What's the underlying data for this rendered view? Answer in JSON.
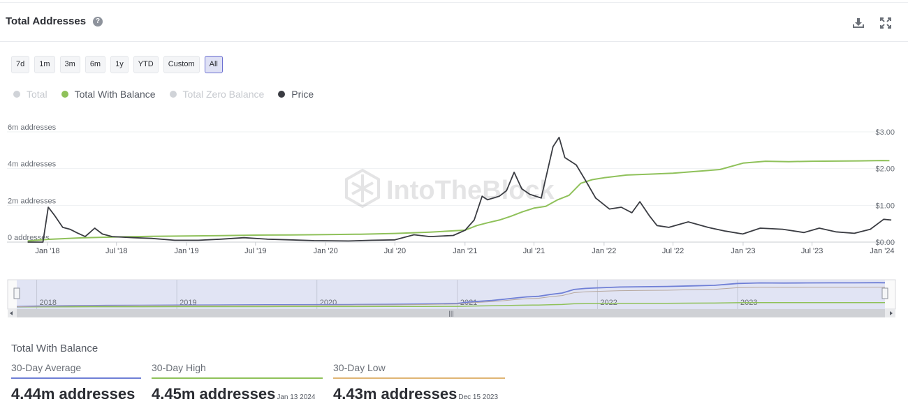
{
  "header": {
    "title": "Total Addresses",
    "help_icon": "question-circle-icon",
    "download_icon": "download-icon",
    "fullscreen_icon": "expand-icon"
  },
  "ranges": [
    "7d",
    "1m",
    "3m",
    "6m",
    "1y",
    "YTD",
    "Custom",
    "All"
  ],
  "active_range": "All",
  "legend": [
    {
      "label": "Total",
      "color": "#d0d3d8",
      "enabled": false
    },
    {
      "label": "Total With Balance",
      "color": "#8fc15a",
      "enabled": true
    },
    {
      "label": "Total Zero Balance",
      "color": "#d0d3d8",
      "enabled": false
    },
    {
      "label": "Price",
      "color": "#3a3c42",
      "enabled": true
    }
  ],
  "chart_data": {
    "type": "line",
    "watermark": "IntoTheBlock",
    "x_ticks": [
      "Jan '18",
      "Jul '18",
      "Jan '19",
      "Jul '19",
      "Jan '20",
      "Jul '20",
      "Jan '21",
      "Jul '21",
      "Jan '22",
      "Jul '22",
      "Jan '23",
      "Jul '23",
      "Jan '24"
    ],
    "y_left_ticks": [
      "0 addresses",
      "2m addresses",
      "4m addresses",
      "6m addresses"
    ],
    "y_left_range": [
      0,
      6000000
    ],
    "y_right_ticks": [
      "$0.00",
      "$1.00",
      "$2.00",
      "$3.00"
    ],
    "y_right_range": [
      0,
      3
    ],
    "grid": true,
    "series": [
      {
        "name": "Total With Balance",
        "axis": "left",
        "color": "#8fc15a",
        "points": [
          [
            "2017-11-10",
            60000
          ],
          [
            "2018-01-01",
            150000
          ],
          [
            "2018-04-01",
            230000
          ],
          [
            "2018-07-01",
            280000
          ],
          [
            "2018-10-01",
            310000
          ],
          [
            "2019-01-01",
            330000
          ],
          [
            "2019-04-01",
            350000
          ],
          [
            "2019-07-01",
            380000
          ],
          [
            "2019-10-01",
            390000
          ],
          [
            "2020-01-01",
            410000
          ],
          [
            "2020-04-01",
            430000
          ],
          [
            "2020-07-01",
            470000
          ],
          [
            "2020-10-01",
            540000
          ],
          [
            "2021-01-01",
            650000
          ],
          [
            "2021-02-01",
            900000
          ],
          [
            "2021-03-01",
            1050000
          ],
          [
            "2021-04-01",
            1200000
          ],
          [
            "2021-05-01",
            1400000
          ],
          [
            "2021-06-01",
            1650000
          ],
          [
            "2021-07-01",
            1850000
          ],
          [
            "2021-08-01",
            1950000
          ],
          [
            "2021-09-01",
            2300000
          ],
          [
            "2021-10-01",
            2550000
          ],
          [
            "2021-11-01",
            3200000
          ],
          [
            "2021-12-01",
            3400000
          ],
          [
            "2022-01-01",
            3500000
          ],
          [
            "2022-03-01",
            3650000
          ],
          [
            "2022-05-01",
            3700000
          ],
          [
            "2022-07-01",
            3750000
          ],
          [
            "2022-09-01",
            3850000
          ],
          [
            "2022-11-01",
            3950000
          ],
          [
            "2023-01-01",
            4300000
          ],
          [
            "2023-03-01",
            4400000
          ],
          [
            "2023-05-01",
            4380000
          ],
          [
            "2023-07-01",
            4400000
          ],
          [
            "2023-09-01",
            4410000
          ],
          [
            "2023-11-01",
            4420000
          ],
          [
            "2024-01-01",
            4440000
          ],
          [
            "2024-01-20",
            4430000
          ]
        ]
      },
      {
        "name": "Price",
        "axis": "right",
        "color": "#3a3c42",
        "points": [
          [
            "2017-11-10",
            0.0
          ],
          [
            "2017-12-20",
            0.0
          ],
          [
            "2018-01-03",
            0.95
          ],
          [
            "2018-01-20",
            0.72
          ],
          [
            "2018-02-10",
            0.4
          ],
          [
            "2018-03-01",
            0.35
          ],
          [
            "2018-03-20",
            0.25
          ],
          [
            "2018-04-10",
            0.15
          ],
          [
            "2018-05-05",
            0.38
          ],
          [
            "2018-05-25",
            0.22
          ],
          [
            "2018-06-20",
            0.15
          ],
          [
            "2018-08-15",
            0.12
          ],
          [
            "2018-10-01",
            0.1
          ],
          [
            "2018-12-01",
            0.05
          ],
          [
            "2019-02-01",
            0.05
          ],
          [
            "2019-04-01",
            0.08
          ],
          [
            "2019-06-01",
            0.12
          ],
          [
            "2019-08-01",
            0.08
          ],
          [
            "2019-10-01",
            0.06
          ],
          [
            "2019-12-01",
            0.04
          ],
          [
            "2020-03-01",
            0.03
          ],
          [
            "2020-05-01",
            0.05
          ],
          [
            "2020-07-01",
            0.06
          ],
          [
            "2020-08-20",
            0.2
          ],
          [
            "2020-10-01",
            0.15
          ],
          [
            "2020-12-01",
            0.18
          ],
          [
            "2021-01-01",
            0.32
          ],
          [
            "2021-01-25",
            0.6
          ],
          [
            "2021-02-15",
            1.25
          ],
          [
            "2021-03-01",
            1.15
          ],
          [
            "2021-04-01",
            1.25
          ],
          [
            "2021-04-20",
            1.4
          ],
          [
            "2021-05-10",
            1.9
          ],
          [
            "2021-05-30",
            1.45
          ],
          [
            "2021-06-20",
            1.3
          ],
          [
            "2021-07-20",
            1.2
          ],
          [
            "2021-08-20",
            2.6
          ],
          [
            "2021-09-05",
            2.85
          ],
          [
            "2021-09-20",
            2.3
          ],
          [
            "2021-10-20",
            2.1
          ],
          [
            "2021-11-15",
            1.65
          ],
          [
            "2021-12-10",
            1.2
          ],
          [
            "2022-01-15",
            0.9
          ],
          [
            "2022-02-15",
            0.95
          ],
          [
            "2022-03-15",
            0.8
          ],
          [
            "2022-04-05",
            1.1
          ],
          [
            "2022-05-01",
            0.7
          ],
          [
            "2022-05-20",
            0.45
          ],
          [
            "2022-06-20",
            0.4
          ],
          [
            "2022-08-10",
            0.55
          ],
          [
            "2022-10-01",
            0.4
          ],
          [
            "2022-11-15",
            0.3
          ],
          [
            "2022-12-31",
            0.22
          ],
          [
            "2023-02-15",
            0.38
          ],
          [
            "2023-04-15",
            0.35
          ],
          [
            "2023-06-10",
            0.26
          ],
          [
            "2023-07-20",
            0.38
          ],
          [
            "2023-09-01",
            0.28
          ],
          [
            "2023-10-20",
            0.24
          ],
          [
            "2023-12-01",
            0.35
          ],
          [
            "2024-01-05",
            0.62
          ],
          [
            "2024-01-25",
            0.6
          ]
        ]
      }
    ]
  },
  "navigator": {
    "year_labels": [
      "2018",
      "2019",
      "2020",
      "2021",
      "2022",
      "2023"
    ]
  },
  "stats": {
    "title": "Total With Balance",
    "avg": {
      "label": "30-Day Average",
      "value": "4.44m addresses",
      "color": "#6f7fd6"
    },
    "high": {
      "label": "30-Day High",
      "value": "4.45m addresses",
      "date": "Jan 13 2024",
      "color": "#8fc15a"
    },
    "low": {
      "label": "30-Day Low",
      "value": "4.43m addresses",
      "date": "Dec 15 2023",
      "color": "#e0b574"
    }
  }
}
